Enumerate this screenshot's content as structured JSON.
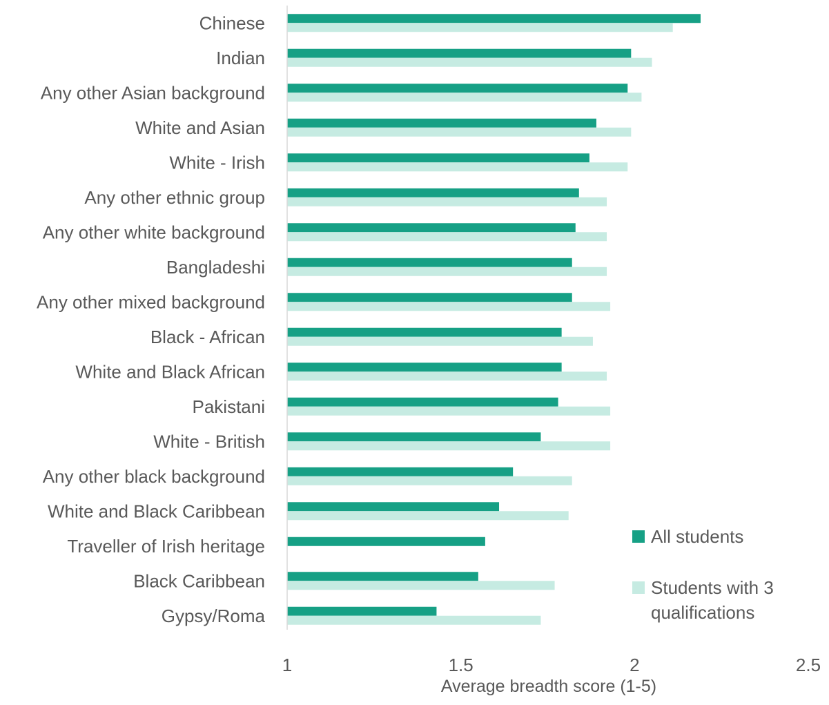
{
  "chart_data": {
    "type": "bar",
    "orientation": "horizontal",
    "categories": [
      "Chinese",
      "Indian",
      "Any other Asian background",
      "White and Asian",
      "White - Irish",
      "Any other ethnic group",
      "Any other white background",
      "Bangladeshi",
      "Any other mixed background",
      "Black - African",
      "White and Black African",
      "Pakistani",
      "White - British",
      "Any other black background",
      "White and Black Caribbean",
      "Traveller of Irish heritage",
      "Black Caribbean",
      "Gypsy/Roma"
    ],
    "series": [
      {
        "name": "All students",
        "color": "#16a085",
        "values": [
          2.19,
          1.99,
          1.98,
          1.89,
          1.87,
          1.84,
          1.83,
          1.82,
          1.82,
          1.79,
          1.79,
          1.78,
          1.73,
          1.65,
          1.61,
          1.57,
          1.55,
          1.43
        ]
      },
      {
        "name": "Students with 3 qualifications",
        "color": "#c6ebe2",
        "values": [
          2.11,
          2.05,
          2.02,
          1.99,
          1.98,
          1.92,
          1.92,
          1.92,
          1.93,
          1.88,
          1.92,
          1.93,
          1.93,
          1.82,
          1.81,
          null,
          1.77,
          1.73
        ]
      }
    ],
    "xlabel": "Average breadth score (1-5)",
    "ylabel": "",
    "xlim": [
      1,
      2.5
    ],
    "xticks": [
      "1",
      "1.5",
      "2",
      "2.5"
    ],
    "grid": false,
    "legend_position": "bottom-right"
  }
}
